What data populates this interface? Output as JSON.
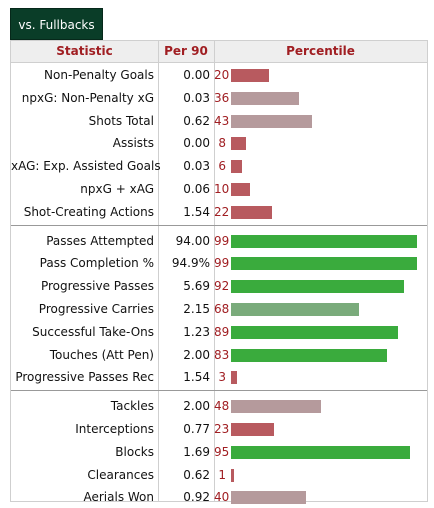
{
  "tab_label": "vs. Fullbacks",
  "headers": {
    "statistic": "Statistic",
    "per90": "Per 90",
    "percentile": "Percentile"
  },
  "colors": {
    "header_text": "#a01e22",
    "tab_background": "#0a3d28",
    "bar_low": "#b85a5f",
    "bar_mid": "#b59a9c",
    "bar_high": "#3aab3d",
    "bar_mid_high": "#7aab7b"
  },
  "groups": [
    {
      "rows": [
        {
          "stat": "Non-Penalty Goals",
          "per90": "0.00",
          "percentile": "20"
        },
        {
          "stat": "npxG: Non-Penalty xG",
          "per90": "0.03",
          "percentile": "36"
        },
        {
          "stat": "Shots Total",
          "per90": "0.62",
          "percentile": "43"
        },
        {
          "stat": "Assists",
          "per90": "0.00",
          "percentile": "8"
        },
        {
          "stat": "xAG: Exp. Assisted Goals",
          "per90": "0.03",
          "percentile": "6"
        },
        {
          "stat": "npxG + xAG",
          "per90": "0.06",
          "percentile": "10"
        },
        {
          "stat": "Shot-Creating Actions",
          "per90": "1.54",
          "percentile": "22"
        }
      ]
    },
    {
      "rows": [
        {
          "stat": "Passes Attempted",
          "per90": "94.00",
          "percentile": "99"
        },
        {
          "stat": "Pass Completion %",
          "per90": "94.9%",
          "percentile": "99"
        },
        {
          "stat": "Progressive Passes",
          "per90": "5.69",
          "percentile": "92"
        },
        {
          "stat": "Progressive Carries",
          "per90": "2.15",
          "percentile": "68"
        },
        {
          "stat": "Successful Take-Ons",
          "per90": "1.23",
          "percentile": "89"
        },
        {
          "stat": "Touches (Att Pen)",
          "per90": "2.00",
          "percentile": "83"
        },
        {
          "stat": "Progressive Passes Rec",
          "per90": "1.54",
          "percentile": "3"
        }
      ]
    },
    {
      "rows": [
        {
          "stat": "Tackles",
          "per90": "2.00",
          "percentile": "48"
        },
        {
          "stat": "Interceptions",
          "per90": "0.77",
          "percentile": "23"
        },
        {
          "stat": "Blocks",
          "per90": "1.69",
          "percentile": "95"
        },
        {
          "stat": "Clearances",
          "per90": "0.62",
          "percentile": "1"
        },
        {
          "stat": "Aerials Won",
          "per90": "0.92",
          "percentile": "40"
        }
      ]
    }
  ]
}
